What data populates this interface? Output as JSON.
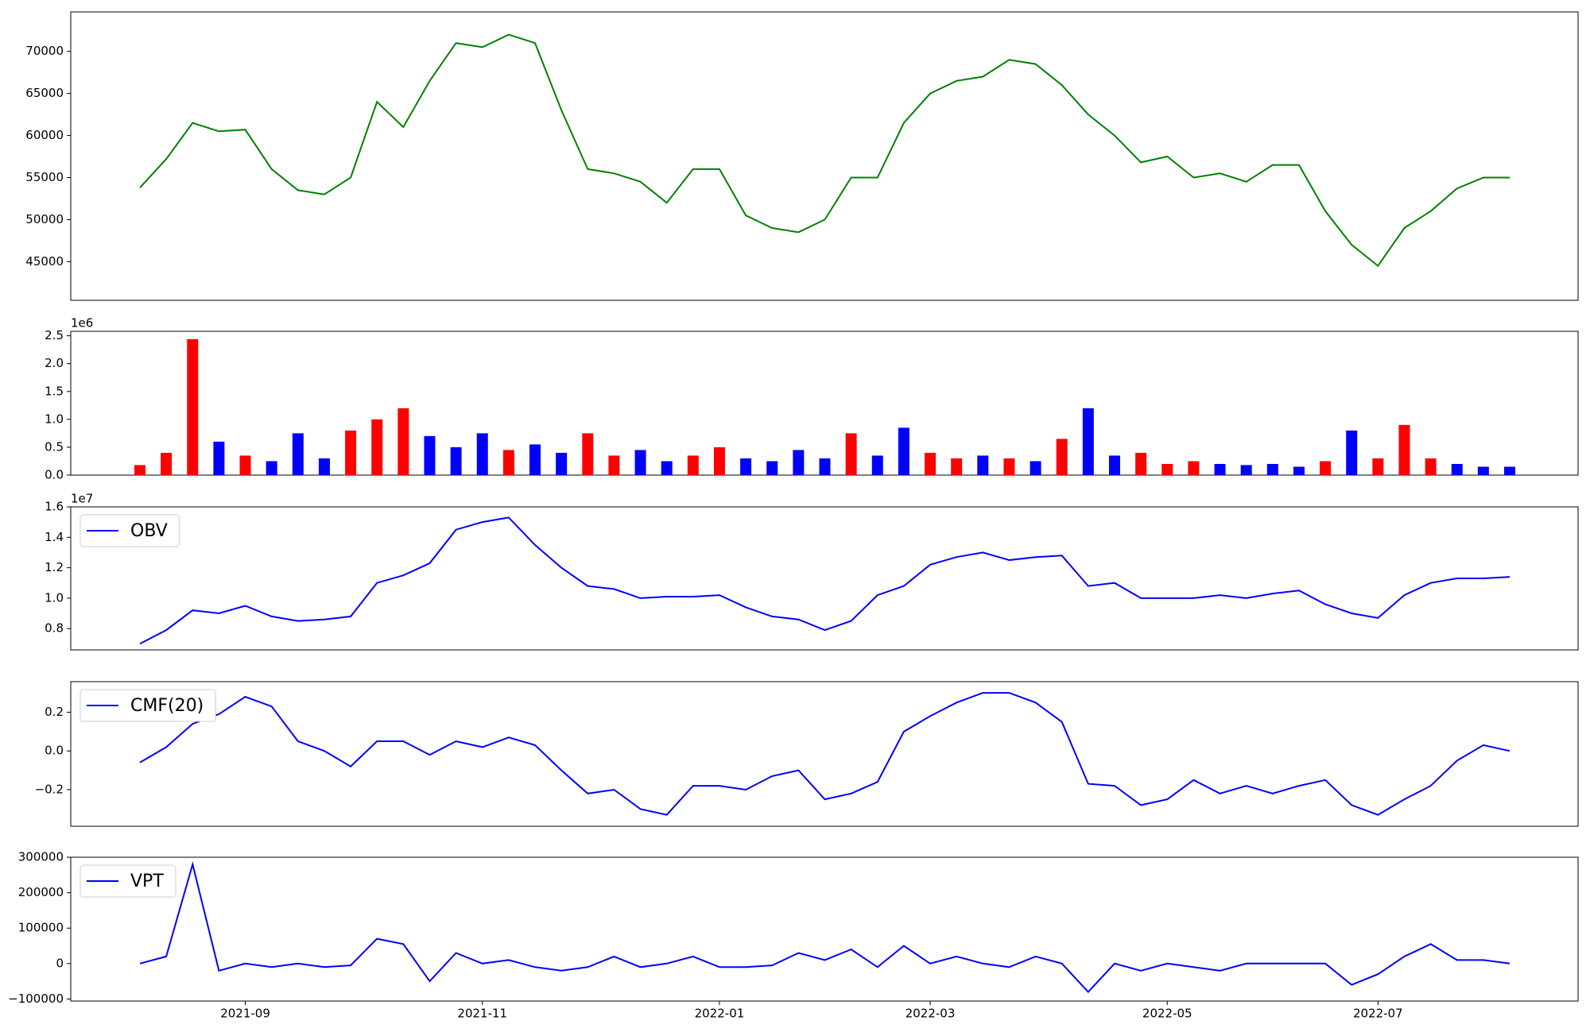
{
  "chart_data": [
    {
      "type": "line",
      "ylim": [
        40400,
        74700
      ],
      "yticks": [
        45000,
        50000,
        55000,
        60000,
        65000,
        70000
      ],
      "series": [
        {
          "color": "#008000",
          "values": [
            53800,
            57200,
            61500,
            60500,
            60700,
            56000,
            53500,
            53000,
            55000,
            64000,
            61000,
            66500,
            71000,
            70500,
            72000,
            71000,
            63000,
            56000,
            55500,
            54500,
            52000,
            56000,
            56000,
            50500,
            49000,
            48500,
            50000,
            55000,
            55000,
            61500,
            65000,
            66500,
            67000,
            69000,
            68500,
            66000,
            62500,
            60000,
            56800,
            57500,
            55000,
            55500,
            54500,
            56500,
            56500,
            51000,
            47000,
            44500,
            49000,
            51000,
            53700,
            55000,
            55000
          ]
        }
      ]
    },
    {
      "type": "bar",
      "offset_label": "1e6",
      "ylim": [
        0,
        2580000
      ],
      "yticks": [
        {
          "value": 0,
          "label": "0.0"
        },
        {
          "value": 500000,
          "label": "0.5"
        },
        {
          "value": 1000000,
          "label": "1.0"
        },
        {
          "value": 1500000,
          "label": "1.5"
        },
        {
          "value": 2000000,
          "label": "2.0"
        },
        {
          "value": 2500000,
          "label": "2.5"
        }
      ],
      "series": [
        {
          "values": [
            180000,
            400000,
            2440000,
            600000,
            350000,
            250000,
            750000,
            300000,
            800000,
            1000000,
            1200000,
            700000,
            500000,
            750000,
            450000,
            550000,
            400000,
            750000,
            350000,
            450000,
            250000,
            350000,
            500000,
            300000,
            250000,
            450000,
            300000,
            750000,
            350000,
            850000,
            400000,
            300000,
            350000,
            300000,
            250000,
            650000,
            1200000,
            350000,
            400000,
            200000,
            250000,
            200000,
            180000,
            200000,
            150000,
            250000,
            800000,
            300000,
            900000,
            300000,
            200000,
            150000,
            150000
          ],
          "colors": [
            "#ff0000",
            "#ff0000",
            "#ff0000",
            "#0000ff",
            "#ff0000",
            "#0000ff",
            "#0000ff",
            "#0000ff",
            "#ff0000",
            "#ff0000",
            "#ff0000",
            "#0000ff",
            "#0000ff",
            "#0000ff",
            "#ff0000",
            "#0000ff",
            "#0000ff",
            "#ff0000",
            "#ff0000",
            "#0000ff",
            "#0000ff",
            "#ff0000",
            "#ff0000",
            "#0000ff",
            "#0000ff",
            "#0000ff",
            "#0000ff",
            "#ff0000",
            "#0000ff",
            "#0000ff",
            "#ff0000",
            "#ff0000",
            "#0000ff",
            "#ff0000",
            "#0000ff",
            "#ff0000",
            "#0000ff",
            "#0000ff",
            "#ff0000",
            "#ff0000",
            "#ff0000",
            "#0000ff",
            "#0000ff",
            "#0000ff",
            "#0000ff",
            "#ff0000",
            "#0000ff",
            "#ff0000",
            "#ff0000",
            "#ff0000",
            "#0000ff",
            "#0000ff",
            "#0000ff"
          ]
        }
      ]
    },
    {
      "type": "line",
      "offset_label": "1e7",
      "ylim": [
        6600000,
        16000000
      ],
      "yticks": [
        {
          "value": 8000000,
          "label": "0.8"
        },
        {
          "value": 10000000,
          "label": "1.0"
        },
        {
          "value": 12000000,
          "label": "1.2"
        },
        {
          "value": 14000000,
          "label": "1.4"
        },
        {
          "value": 16000000,
          "label": "1.6"
        }
      ],
      "series": [
        {
          "name": "OBV",
          "color": "#0000ff",
          "values": [
            7000000,
            7900000,
            9200000,
            9000000,
            9500000,
            8800000,
            8500000,
            8600000,
            8800000,
            11000000,
            11500000,
            12300000,
            14500000,
            15000000,
            15300000,
            13500000,
            12000000,
            10800000,
            10600000,
            10000000,
            10100000,
            10100000,
            10200000,
            9400000,
            8800000,
            8600000,
            7900000,
            8500000,
            10200000,
            10800000,
            12200000,
            12700000,
            13000000,
            12500000,
            12700000,
            12800000,
            10800000,
            11000000,
            10000000,
            10000000,
            10000000,
            10200000,
            10000000,
            10300000,
            10500000,
            9600000,
            9000000,
            8700000,
            10200000,
            11000000,
            11300000,
            11300000,
            11400000
          ]
        }
      ]
    },
    {
      "type": "line",
      "ylim": [
        -0.389,
        0.358
      ],
      "yticks": [
        {
          "value": -0.2,
          "label": "−0.2"
        },
        {
          "value": 0,
          "label": "0.0"
        },
        0.2
      ],
      "series": [
        {
          "name": "CMF(20)",
          "color": "#0000ff",
          "values": [
            -0.06,
            0.02,
            0.14,
            0.19,
            0.28,
            0.23,
            0.05,
            0.0,
            -0.08,
            0.05,
            0.05,
            -0.02,
            0.05,
            0.02,
            0.07,
            0.03,
            -0.1,
            -0.22,
            -0.2,
            -0.3,
            -0.33,
            -0.18,
            -0.18,
            -0.2,
            -0.13,
            -0.1,
            -0.25,
            -0.22,
            -0.16,
            0.1,
            0.18,
            0.25,
            0.3,
            0.3,
            0.25,
            0.15,
            -0.17,
            -0.18,
            -0.28,
            -0.25,
            -0.15,
            -0.22,
            -0.18,
            -0.22,
            -0.18,
            -0.15,
            -0.28,
            -0.33,
            -0.25,
            -0.18,
            -0.05,
            0.03,
            0.0
          ]
        }
      ]
    },
    {
      "type": "line",
      "ylim": [
        -105700,
        300000
      ],
      "yticks": [
        {
          "value": -100000,
          "label": "−100000"
        },
        0,
        100000,
        200000,
        300000
      ],
      "categories": [
        null,
        null,
        null,
        null,
        "2021-09",
        null,
        null,
        null,
        null,
        null,
        null,
        null,
        null,
        "2021-11",
        null,
        null,
        null,
        null,
        null,
        null,
        null,
        null,
        "2022-01",
        null,
        null,
        null,
        null,
        null,
        null,
        null,
        "2022-03",
        null,
        null,
        null,
        null,
        null,
        null,
        null,
        null,
        "2022-05",
        null,
        null,
        null,
        null,
        null,
        null,
        null,
        "2022-07",
        null,
        null,
        null,
        null,
        null
      ],
      "series": [
        {
          "name": "VPT",
          "color": "#0000ff",
          "values": [
            0,
            20000,
            280000,
            -20000,
            0,
            -10000,
            0,
            -10000,
            -5000,
            70000,
            55000,
            -50000,
            30000,
            0,
            10000,
            -10000,
            -20000,
            -10000,
            20000,
            -10000,
            0,
            20000,
            -10000,
            -10000,
            -5000,
            30000,
            10000,
            40000,
            -10000,
            50000,
            0,
            20000,
            0,
            -10000,
            20000,
            0,
            -80000,
            0,
            -20000,
            0,
            -10000,
            -20000,
            0,
            0,
            0,
            0,
            -60000,
            -30000,
            20000,
            55000,
            10000,
            10000,
            0
          ]
        }
      ]
    }
  ]
}
